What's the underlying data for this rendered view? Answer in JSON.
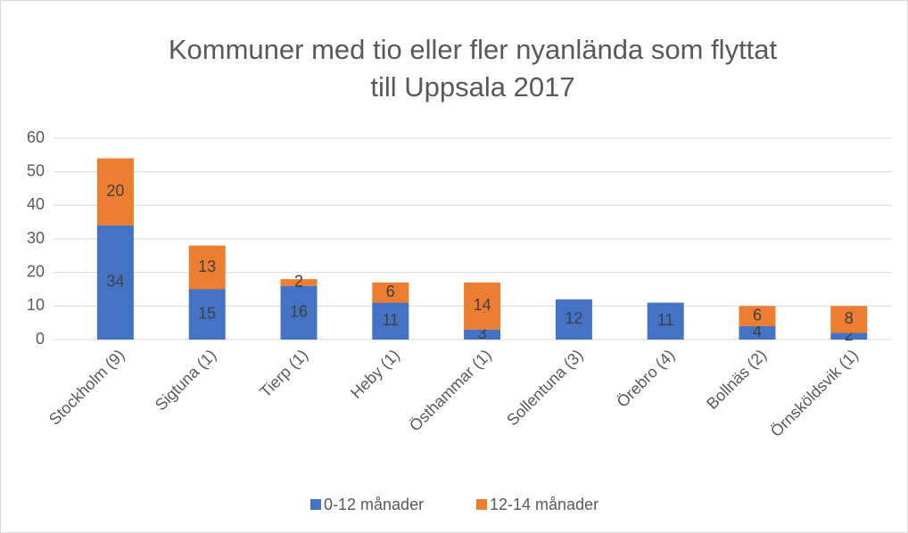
{
  "chart_data": {
    "type": "stacked_bar",
    "title": [
      "Kommuner med tio eller fler nyanlända som flyttat",
      "till Uppsala 2017"
    ],
    "categories": [
      "Stockholm (9)",
      "Sigtuna (1)",
      "Tierp (1)",
      "Heby (1)",
      "Östhammar (1)",
      "Sollentuna (3)",
      "Örebro (4)",
      "Bollnäs (2)",
      "Örnsköldsvik (1)"
    ],
    "series": [
      {
        "name": "0-12 månader",
        "color": "#4472c4",
        "values": [
          34,
          15,
          16,
          11,
          3,
          12,
          11,
          4,
          2
        ]
      },
      {
        "name": "12-14 månader",
        "color": "#ed7d31",
        "values": [
          20,
          13,
          2,
          6,
          14,
          null,
          null,
          6,
          8
        ]
      }
    ],
    "ylim": [
      0,
      60
    ],
    "yticks": [
      0,
      10,
      20,
      30,
      40,
      50,
      60
    ],
    "grid": true,
    "legend": "bottom"
  }
}
